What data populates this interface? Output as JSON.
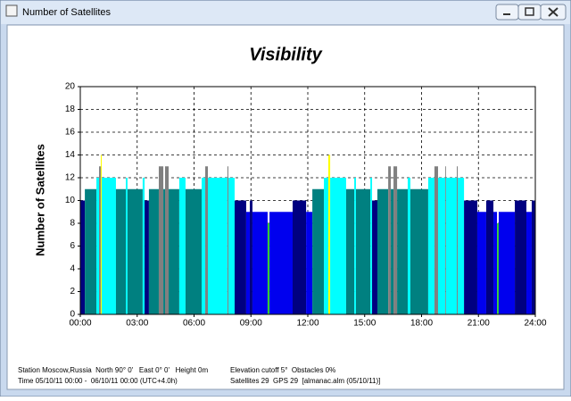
{
  "window": {
    "title": "Number of Satellites"
  },
  "chart_data": {
    "type": "step-bar",
    "title": "Visibility",
    "y_label": "Number of Satellites",
    "x": [
      0,
      0.24,
      0.85,
      0.99,
      1.08,
      1.13,
      1.88,
      2.4,
      2.49,
      3.29,
      3.39,
      3.62,
      4.14,
      4.38,
      4.47,
      4.66,
      5.22,
      5.55,
      6.4,
      6.59,
      6.73,
      7.76,
      7.81,
      8.14,
      8.75,
      8.94,
      9.08,
      9.88,
      9.98,
      11.2,
      11.91,
      12.24,
      12.85,
      13.08,
      13.18,
      14.02,
      14.45,
      14.54,
      15.3,
      15.39,
      15.67,
      16.24,
      16.38,
      16.52,
      16.71,
      17.27,
      17.41,
      18.35,
      18.68,
      18.87,
      19.25,
      19.29,
      19.86,
      19.91,
      20.24,
      20.94,
      21.41,
      21.79,
      21.98,
      22.07,
      22.92,
      23.53,
      23.81
    ],
    "values": [
      10,
      11,
      12,
      13,
      14,
      12,
      11,
      12,
      11,
      12,
      10,
      11,
      13,
      11,
      13,
      11,
      12,
      11,
      12,
      13,
      12,
      13,
      12,
      10,
      9,
      10,
      9,
      8,
      9,
      10,
      9,
      11,
      12,
      14,
      12,
      11,
      12,
      11,
      12,
      10,
      11,
      13,
      11,
      13,
      11,
      12,
      11,
      12,
      13,
      12,
      13,
      12,
      13,
      12,
      10,
      9,
      10,
      9,
      8,
      9,
      10,
      9,
      10
    ],
    "level_colors": {
      "8": "#33cc33",
      "9": "#0000ee",
      "10": "#000080",
      "11": "#008080",
      "12": "#00ffff",
      "13": "#808080",
      "14": "#ffff00"
    },
    "xlim": [
      0,
      24
    ],
    "xticks": [
      {
        "value": 0,
        "label": "00:00"
      },
      {
        "value": 3,
        "label": "03:00"
      },
      {
        "value": 6,
        "label": "06:00"
      },
      {
        "value": 9,
        "label": "09:00"
      },
      {
        "value": 12,
        "label": "12:00"
      },
      {
        "value": 15,
        "label": "15:00"
      },
      {
        "value": 18,
        "label": "18:00"
      },
      {
        "value": 21,
        "label": "21:00"
      },
      {
        "value": 24,
        "label": "24:00"
      }
    ],
    "ylim": [
      0,
      20
    ],
    "yticks": [
      0,
      2,
      4,
      6,
      8,
      10,
      12,
      14,
      16,
      18,
      20
    ],
    "grid": true
  },
  "footer": {
    "left": [
      "Station Moscow,Russia  North 90° 0'   East 0° 0'   Height 0m",
      "Time 05/10/11 00:00 -  06/10/11 00:00 (UTC+4.0h)"
    ],
    "right": [
      "Elevation cutoff 5°  Obstacles 0%",
      "Satellites 29  GPS 29  [almanac.alm (05/10/11)]"
    ]
  }
}
